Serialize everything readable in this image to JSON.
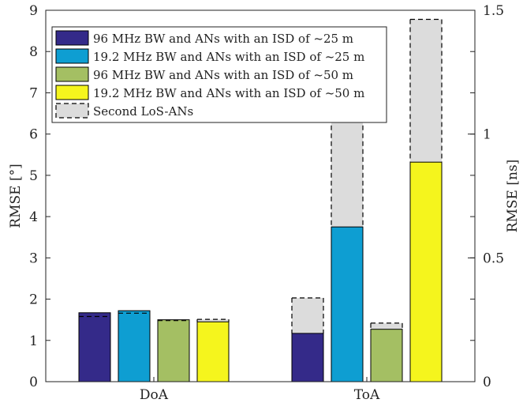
{
  "chart_data": {
    "type": "bar",
    "categories": [
      "DoA",
      "ToA"
    ],
    "ylabel_left": "RMSE [°]",
    "ylabel_right": "RMSE [ns]",
    "ylim_left": [
      0,
      9
    ],
    "ylim_right": [
      0,
      1.5
    ],
    "yticks_left": [
      "0",
      "1",
      "2",
      "3",
      "4",
      "5",
      "6",
      "7",
      "8",
      "9"
    ],
    "yticks_right": [
      "0",
      "0.5",
      "1",
      "1.5"
    ],
    "series": [
      {
        "name": "96 MHz BW and ANs with an ISD of ~25 m",
        "color": "#342a89",
        "values": [
          1.67,
          1.17
        ]
      },
      {
        "name": "19.2 MHz BW and ANs with an ISD of ~25 m",
        "color": "#0e9ed2",
        "values": [
          1.72,
          3.75
        ]
      },
      {
        "name": "96 MHz BW and ANs with an ISD of ~50 m",
        "color": "#a4bf63",
        "values": [
          1.5,
          1.27
        ]
      },
      {
        "name": "19.2 MHz BW and ANs with an ISD of ~50 m",
        "color": "#f5f51d",
        "values": [
          1.45,
          5.32
        ]
      }
    ],
    "second_los": {
      "name": "Second LoS-ANs",
      "color": "#dcdcdc",
      "values": [
        [
          1.58,
          2.03
        ],
        [
          1.66,
          6.4
        ],
        [
          1.48,
          1.42
        ],
        [
          1.51,
          8.78
        ]
      ]
    },
    "legend_position": "top-left"
  }
}
